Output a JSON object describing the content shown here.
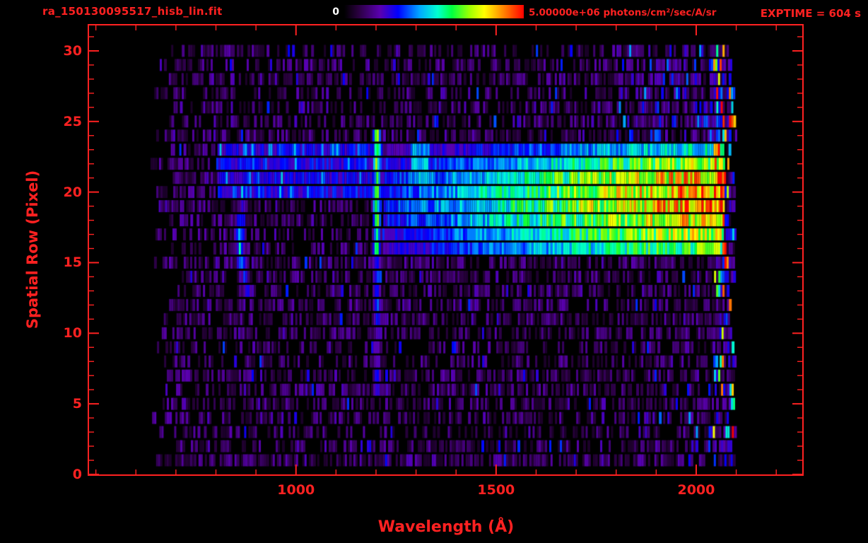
{
  "window": {
    "background": "#000000",
    "accent_red": "#ff2121",
    "colorbar_zero_label_color": "#ffffff"
  },
  "header": {
    "exptime_label": "EXPTIME = 604 s"
  },
  "chart_data": {
    "type": "heatmap",
    "title": "ra_150130095517_hisb_lin.fit",
    "xlabel": "Wavelength (Å)",
    "ylabel": "Spatial Row (Pixel)",
    "x_ticks": [
      1000,
      1500,
      2000
    ],
    "x_minor_step": 100,
    "y_ticks": [
      0,
      5,
      10,
      15,
      20,
      25,
      30
    ],
    "y_minor_step": 1,
    "xlim": [
      483,
      2265
    ],
    "ylim": [
      0,
      31.8
    ],
    "exptime_seconds": 604,
    "colorbar": {
      "min": 0,
      "max": 5000000,
      "min_label": "0",
      "max_label": "5.00000e+06 photons/cm²/sec/A/sr",
      "units": "photons/cm2/sec/A/sr",
      "stops": [
        {
          "pos": 0.0,
          "color": "#000000"
        },
        {
          "pos": 0.08,
          "color": "#2a0040"
        },
        {
          "pos": 0.2,
          "color": "#5a00b0"
        },
        {
          "pos": 0.3,
          "color": "#0000ff"
        },
        {
          "pos": 0.42,
          "color": "#00a8ff"
        },
        {
          "pos": 0.52,
          "color": "#00ffd0"
        },
        {
          "pos": 0.6,
          "color": "#00ff40"
        },
        {
          "pos": 0.7,
          "color": "#a0ff00"
        },
        {
          "pos": 0.78,
          "color": "#ffff00"
        },
        {
          "pos": 0.88,
          "color": "#ff8c00"
        },
        {
          "pos": 1.0,
          "color": "#ff0000"
        }
      ]
    },
    "data_extent": {
      "wavelength_min": 650,
      "wavelength_max": 2100,
      "row_min": 1,
      "row_max": 30
    },
    "features": {
      "background_speckle": {
        "rows": [
          1,
          30
        ],
        "intensity": [
          0.05,
          0.22
        ],
        "description": "dark purple noise speckle across detector"
      },
      "upper_band": {
        "rows": [
          20,
          23
        ],
        "wavelength": [
          800,
          1215
        ],
        "intensity": [
          0.2,
          0.35
        ],
        "description": "faint blue continuum short of emission line"
      },
      "main_band": {
        "rows": [
          16,
          23
        ],
        "wavelength": [
          1215,
          2068
        ],
        "description": "bright spectral continuum, intensity rising toward long wavelengths"
      },
      "band_ramp": [
        [
          1215,
          0.3
        ],
        [
          1500,
          0.5
        ],
        [
          1700,
          0.66
        ],
        [
          1900,
          0.8
        ],
        [
          2070,
          0.88
        ]
      ],
      "band_row_amp": {
        "16": 0.72,
        "17": 0.84,
        "18": 0.93,
        "19": 1.0,
        "20": 1.0,
        "21": 0.95,
        "22": 0.8,
        "23": 0.58
      },
      "arc": {
        "rows": [
          13,
          23
        ],
        "vertex_row": 17,
        "vertex_wavelength": 857,
        "curvature": 1.2,
        "half_width": 20,
        "description": "curved blue-cyan feature near 860 A"
      },
      "emission_line": {
        "wavelength": 1200,
        "half_width": 13,
        "rows": [
          6,
          24
        ],
        "description": "bright vertical emission line"
      },
      "cyan_blob": {
        "rows": [
          21,
          23
        ],
        "wavelength": [
          1285,
          1330
        ]
      },
      "right_edge": {
        "wavelength": [
          2040,
          2100
        ],
        "rows": [
          1,
          30
        ],
        "description": "dense multicolor speckle column at long-wavelength edge"
      },
      "upper_right_speckle": {
        "rows": [
          24,
          30
        ],
        "wavelength": [
          1800,
          2055
        ]
      },
      "lower_right_speckle": {
        "rows": [
          1,
          6
        ],
        "wavelength": [
          1850,
          2055
        ]
      }
    },
    "seed": 1337
  }
}
